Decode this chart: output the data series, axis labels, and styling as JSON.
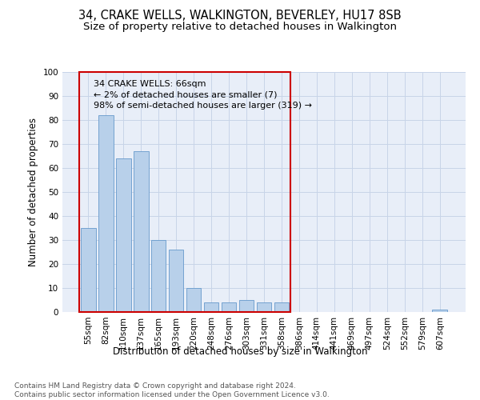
{
  "title": "34, CRAKE WELLS, WALKINGTON, BEVERLEY, HU17 8SB",
  "subtitle": "Size of property relative to detached houses in Walkington",
  "xlabel": "Distribution of detached houses by size in Walkington",
  "ylabel": "Number of detached properties",
  "categories": [
    "55sqm",
    "82sqm",
    "110sqm",
    "137sqm",
    "165sqm",
    "193sqm",
    "220sqm",
    "248sqm",
    "276sqm",
    "303sqm",
    "331sqm",
    "358sqm",
    "386sqm",
    "414sqm",
    "441sqm",
    "469sqm",
    "497sqm",
    "524sqm",
    "552sqm",
    "579sqm",
    "607sqm"
  ],
  "values": [
    35,
    82,
    64,
    67,
    30,
    26,
    10,
    4,
    4,
    5,
    4,
    4,
    0,
    0,
    0,
    0,
    0,
    0,
    0,
    0,
    1
  ],
  "bar_color": "#b8d0ea",
  "bar_edgecolor": "#6699cc",
  "annotation_box_text": "34 CRAKE WELLS: 66sqm\n← 2% of detached houses are smaller (7)\n98% of semi-detached houses are larger (319) →",
  "annotation_box_color": "#cc0000",
  "ylim": [
    0,
    100
  ],
  "yticks": [
    0,
    10,
    20,
    30,
    40,
    50,
    60,
    70,
    80,
    90,
    100
  ],
  "grid_color": "#c8d4e8",
  "background_color": "#e8eef8",
  "footnote": "Contains HM Land Registry data © Crown copyright and database right 2024.\nContains public sector information licensed under the Open Government Licence v3.0.",
  "title_fontsize": 10.5,
  "subtitle_fontsize": 9.5,
  "xlabel_fontsize": 8.5,
  "ylabel_fontsize": 8.5,
  "annot_fontsize": 8,
  "footnote_fontsize": 6.5,
  "tick_fontsize": 7.5
}
